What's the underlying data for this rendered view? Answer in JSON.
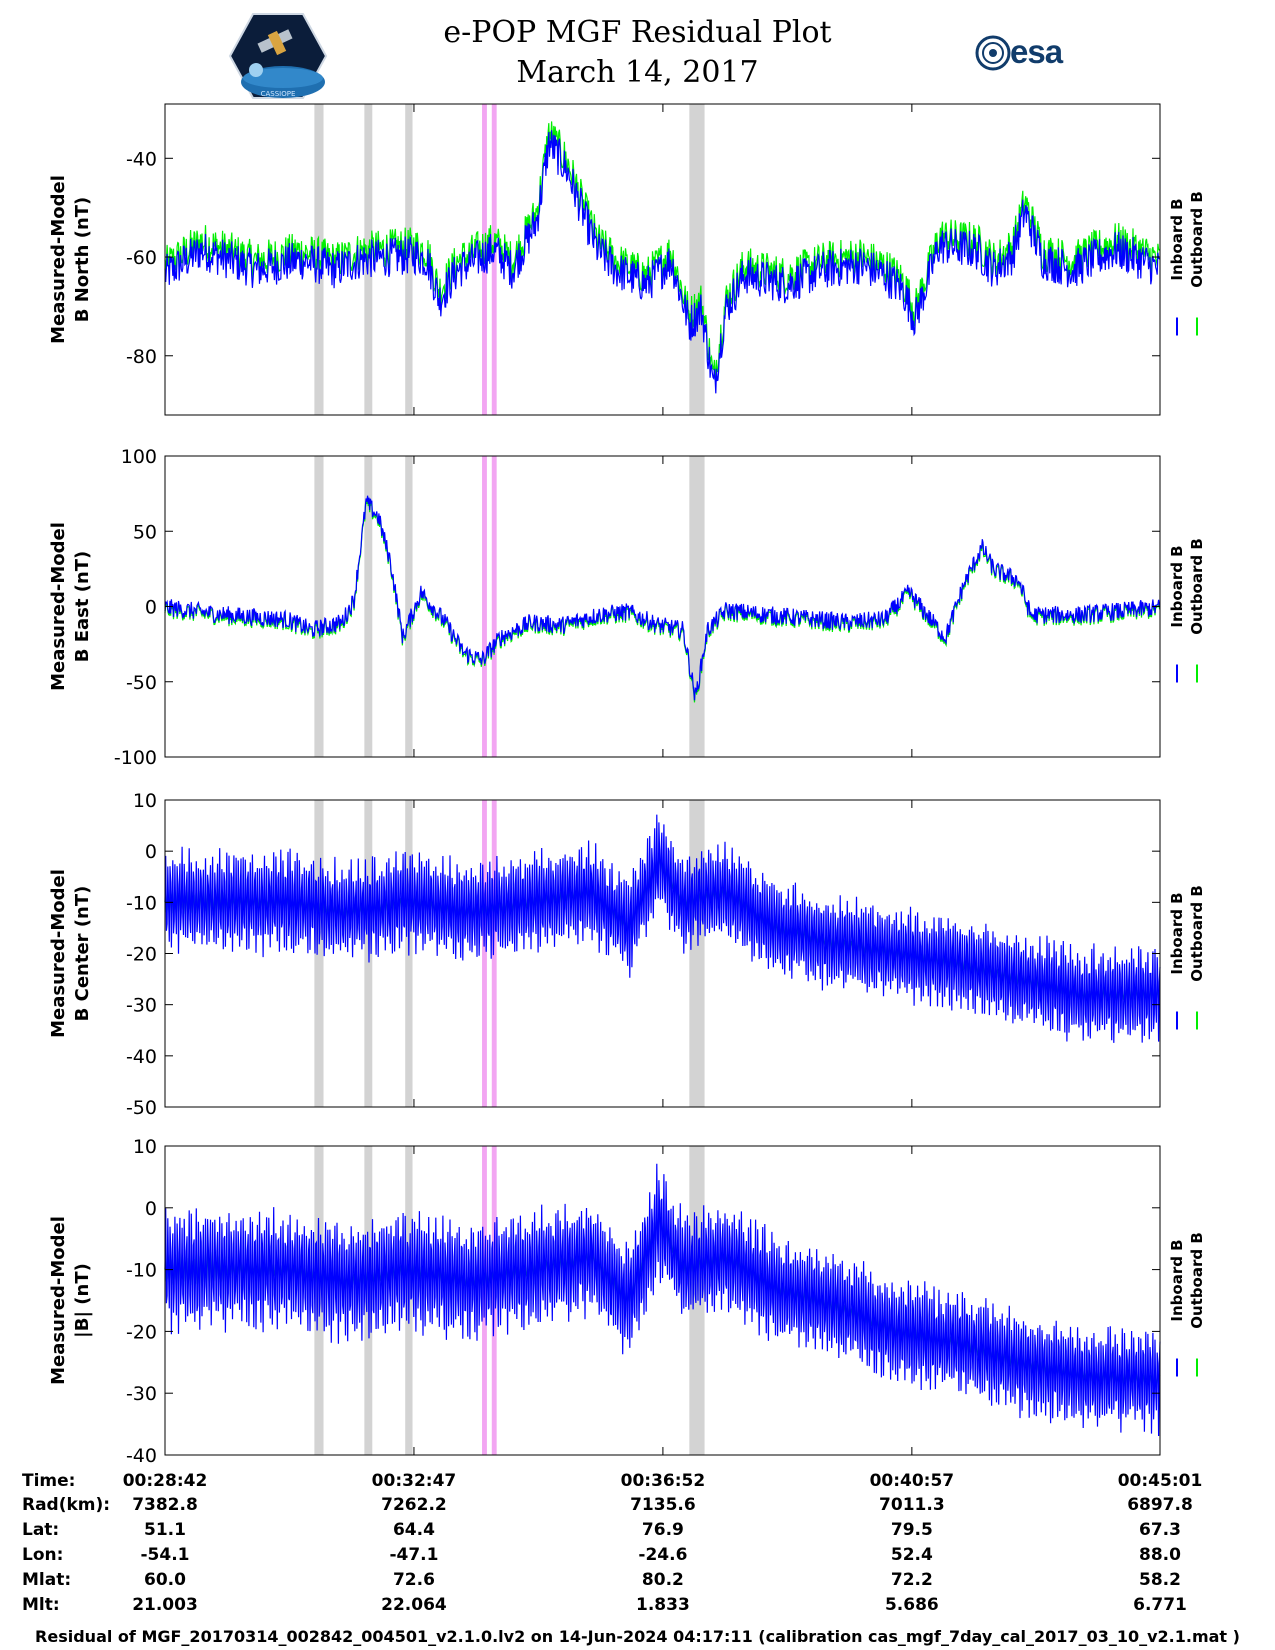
{
  "header": {
    "title_line1": "e-POP MGF Residual Plot",
    "title_line2": "March 14, 2017",
    "logo_left_text": "CASSIOPE",
    "logo_right_text": "esa"
  },
  "colors": {
    "inboard": "#0000ff",
    "outboard": "#00ee00",
    "gray_band": "#d3d3d3",
    "magenta_band": "#f2a6f2"
  },
  "legend": {
    "inboard": "Inboard B",
    "outboard": "Outboard B"
  },
  "chart_data": [
    {
      "type": "line",
      "ylabel_line1": "Measured-Model",
      "ylabel_line2": "B North (nT)",
      "ylim": [
        -92,
        -29
      ],
      "yticks": [
        -80,
        -60,
        -40
      ],
      "baseline": -60,
      "x_range_min": [
        0,
        16.32
      ],
      "anchors": [
        [
          0,
          -63
        ],
        [
          0.6,
          -58
        ],
        [
          1.5,
          -62
        ],
        [
          2.2,
          -60
        ],
        [
          2.8,
          -62
        ],
        [
          3.2,
          -60
        ],
        [
          4.1,
          -59
        ],
        [
          4.3,
          -60
        ],
        [
          4.5,
          -68
        ],
        [
          4.8,
          -62
        ],
        [
          5.4,
          -58
        ],
        [
          5.7,
          -62
        ],
        [
          6.1,
          -52
        ],
        [
          6.3,
          -36
        ],
        [
          6.6,
          -42
        ],
        [
          6.9,
          -52
        ],
        [
          7.1,
          -58
        ],
        [
          7.4,
          -62
        ],
        [
          7.9,
          -65
        ],
        [
          8.3,
          -60
        ],
        [
          8.6,
          -73
        ],
        [
          8.8,
          -70
        ],
        [
          9.0,
          -86
        ],
        [
          9.2,
          -70
        ],
        [
          9.5,
          -63
        ],
        [
          10.2,
          -65
        ],
        [
          10.8,
          -62
        ],
        [
          11.4,
          -61
        ],
        [
          11.8,
          -63
        ],
        [
          12.1,
          -66
        ],
        [
          12.3,
          -72
        ],
        [
          12.7,
          -57
        ],
        [
          13.3,
          -58
        ],
        [
          13.6,
          -62
        ],
        [
          13.9,
          -59
        ],
        [
          14.1,
          -50
        ],
        [
          14.4,
          -60
        ],
        [
          14.9,
          -62
        ],
        [
          15.2,
          -60
        ],
        [
          15.6,
          -58
        ],
        [
          16.0,
          -60
        ],
        [
          16.32,
          -62
        ]
      ],
      "noise": 4,
      "outboard_offset": 1.2,
      "gray_bands_min": [
        [
          2.45,
          2.6
        ],
        [
          3.27,
          3.4
        ],
        [
          3.94,
          4.06
        ],
        [
          8.6,
          8.85
        ]
      ],
      "magenta_bands_min": [
        [
          5.2,
          5.28
        ],
        [
          5.36,
          5.44
        ]
      ]
    },
    {
      "type": "line",
      "ylabel_line1": "Measured-Model",
      "ylabel_line2": "B East (nT)",
      "ylim": [
        -100,
        100
      ],
      "yticks": [
        -100,
        -50,
        0,
        50,
        100
      ],
      "baseline": 0,
      "x_range_min": [
        0,
        16.32
      ],
      "anchors": [
        [
          0,
          0
        ],
        [
          1.0,
          -5
        ],
        [
          2.0,
          -8
        ],
        [
          2.4,
          -15
        ],
        [
          2.9,
          -10
        ],
        [
          3.1,
          5
        ],
        [
          3.3,
          70
        ],
        [
          3.5,
          60
        ],
        [
          3.7,
          30
        ],
        [
          3.9,
          -20
        ],
        [
          4.2,
          10
        ],
        [
          4.6,
          -10
        ],
        [
          4.9,
          -30
        ],
        [
          5.2,
          -35
        ],
        [
          5.5,
          -20
        ],
        [
          6.0,
          -10
        ],
        [
          6.5,
          -12
        ],
        [
          7.1,
          -5
        ],
        [
          7.6,
          -3
        ],
        [
          8.1,
          -12
        ],
        [
          8.5,
          -15
        ],
        [
          8.7,
          -60
        ],
        [
          8.9,
          -15
        ],
        [
          9.2,
          -2
        ],
        [
          9.9,
          -5
        ],
        [
          11.2,
          -10
        ],
        [
          11.8,
          -8
        ],
        [
          12.2,
          10
        ],
        [
          12.5,
          -5
        ],
        [
          12.8,
          -20
        ],
        [
          13.1,
          15
        ],
        [
          13.4,
          40
        ],
        [
          13.6,
          25
        ],
        [
          14.0,
          18
        ],
        [
          14.2,
          -5
        ],
        [
          15.0,
          -5
        ],
        [
          16.32,
          0
        ]
      ],
      "noise": 6,
      "outboard_offset": -2,
      "gray_bands_min": [
        [
          2.45,
          2.6
        ],
        [
          3.27,
          3.4
        ],
        [
          3.94,
          4.06
        ],
        [
          8.6,
          8.85
        ]
      ],
      "magenta_bands_min": [
        [
          5.2,
          5.28
        ],
        [
          5.36,
          5.44
        ]
      ]
    },
    {
      "type": "line",
      "ylabel_line1": "Measured-Model",
      "ylabel_line2": "B Center (nT)",
      "ylim": [
        -50,
        10
      ],
      "yticks": [
        -50,
        -40,
        -30,
        -20,
        -10,
        0,
        10
      ],
      "baseline": -10,
      "x_range_min": [
        0,
        16.32
      ],
      "anchors": [
        [
          0,
          -10
        ],
        [
          2.0,
          -10
        ],
        [
          3.0,
          -12
        ],
        [
          4.0,
          -10
        ],
        [
          5.0,
          -12
        ],
        [
          6.0,
          -10
        ],
        [
          7.0,
          -8
        ],
        [
          7.6,
          -15
        ],
        [
          8.1,
          -2
        ],
        [
          8.5,
          -10
        ],
        [
          9.2,
          -8
        ],
        [
          10.0,
          -15
        ],
        [
          11.0,
          -18
        ],
        [
          12.0,
          -20
        ],
        [
          13.0,
          -22
        ],
        [
          14.0,
          -25
        ],
        [
          15.0,
          -28
        ],
        [
          16.32,
          -28
        ]
      ],
      "oscillation_amp_start": 11,
      "oscillation_amp_end": 10,
      "outboard_offset": 0,
      "gray_bands_min": [
        [
          2.45,
          2.6
        ],
        [
          3.27,
          3.4
        ],
        [
          3.94,
          4.06
        ],
        [
          8.6,
          8.85
        ]
      ],
      "magenta_bands_min": [
        [
          5.2,
          5.28
        ],
        [
          5.36,
          5.44
        ]
      ]
    },
    {
      "type": "line",
      "ylabel_line1": "Measured-Model",
      "ylabel_line2": "|B| (nT)",
      "ylim": [
        -40,
        10
      ],
      "yticks": [
        -40,
        -30,
        -20,
        -10,
        0,
        10
      ],
      "baseline": -10,
      "x_range_min": [
        0,
        16.32
      ],
      "anchors": [
        [
          0,
          -10
        ],
        [
          2.0,
          -10
        ],
        [
          3.0,
          -12
        ],
        [
          4.0,
          -10
        ],
        [
          5.0,
          -12
        ],
        [
          6.0,
          -10
        ],
        [
          7.0,
          -8
        ],
        [
          7.6,
          -15
        ],
        [
          8.1,
          -2
        ],
        [
          8.5,
          -10
        ],
        [
          9.2,
          -8
        ],
        [
          10.0,
          -13
        ],
        [
          11.0,
          -16
        ],
        [
          12.0,
          -20
        ],
        [
          13.0,
          -22
        ],
        [
          14.0,
          -25
        ],
        [
          15.0,
          -27
        ],
        [
          16.32,
          -28
        ]
      ],
      "oscillation_amp_start": 11,
      "oscillation_amp_end": 9,
      "outboard_offset": 0,
      "gray_bands_min": [
        [
          2.45,
          2.6
        ],
        [
          3.27,
          3.4
        ],
        [
          3.94,
          4.06
        ],
        [
          8.6,
          8.85
        ]
      ],
      "magenta_bands_min": [
        [
          5.2,
          5.28
        ],
        [
          5.36,
          5.44
        ]
      ]
    }
  ],
  "ephemeris": {
    "row_labels": [
      "Time:",
      "Rad(km):",
      "Lat:",
      "Lon:",
      "Mlat:",
      "Mlt:"
    ],
    "columns": [
      [
        "00:28:42",
        "7382.8",
        "51.1",
        "-54.1",
        "60.0",
        "21.003"
      ],
      [
        "00:32:47",
        "7262.2",
        "64.4",
        "-47.1",
        "72.6",
        "22.064"
      ],
      [
        "00:36:52",
        "7135.6",
        "76.9",
        "-24.6",
        "80.2",
        "1.833"
      ],
      [
        "00:40:57",
        "7011.3",
        "79.5",
        "52.4",
        "72.2",
        "5.686"
      ],
      [
        "00:45:01",
        "6897.8",
        "67.3",
        "88.0",
        "58.2",
        "6.771"
      ]
    ]
  },
  "footer": {
    "caption": "Residual of MGF_20170314_002842_004501_v2.1.0.lv2 on 14-Jun-2024 04:17:11 (calibration cas_mgf_7day_cal_2017_03_10_v2.1.mat )"
  }
}
